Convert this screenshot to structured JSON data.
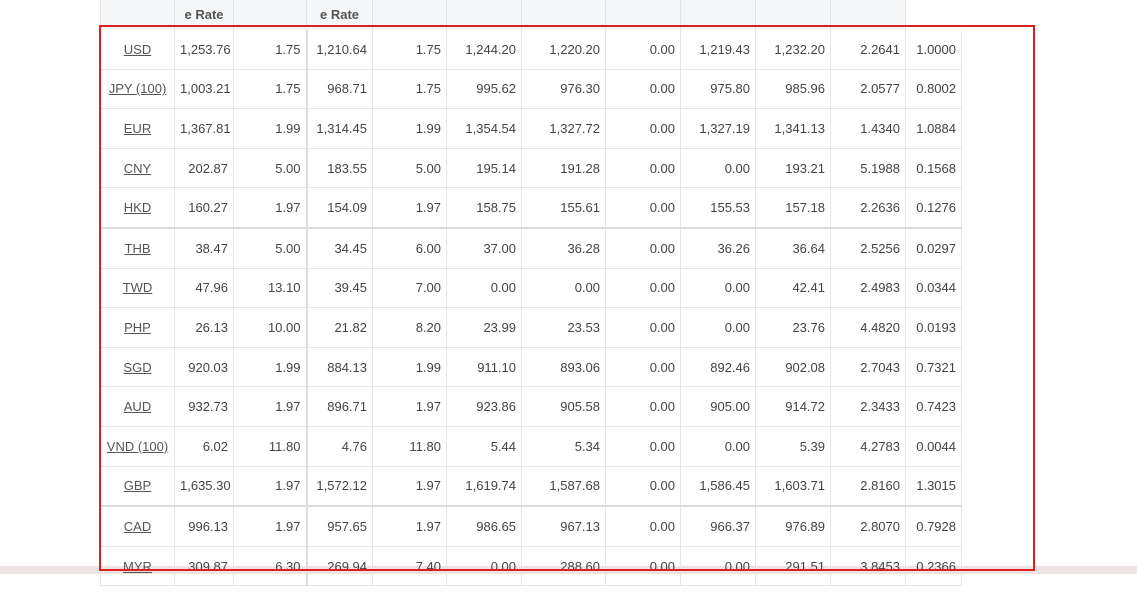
{
  "table": {
    "headers": [
      "",
      "e Rate",
      "",
      "e Rate",
      "",
      "",
      "",
      "",
      "",
      "",
      "",
      ""
    ],
    "rows": [
      {
        "currency": "USD",
        "cells": [
          "1,253.76",
          "1.75",
          "1,210.64",
          "1.75",
          "1,244.20",
          "1,220.20",
          "0.00",
          "1,219.43",
          "1,232.20",
          "2.2641",
          "1.0000"
        ]
      },
      {
        "currency": "JPY (100)",
        "cells": [
          "1,003.21",
          "1.75",
          "968.71",
          "1.75",
          "995.62",
          "976.30",
          "0.00",
          "975.80",
          "985.96",
          "2.0577",
          "0.8002"
        ]
      },
      {
        "currency": "EUR",
        "cells": [
          "1,367.81",
          "1.99",
          "1,314.45",
          "1.99",
          "1,354.54",
          "1,327.72",
          "0.00",
          "1,327.19",
          "1,341.13",
          "1.4340",
          "1.0884"
        ]
      },
      {
        "currency": "CNY",
        "cells": [
          "202.87",
          "5.00",
          "183.55",
          "5.00",
          "195.14",
          "191.28",
          "0.00",
          "0.00",
          "193.21",
          "5.1988",
          "0.1568"
        ]
      },
      {
        "currency": "HKD",
        "cells": [
          "160.27",
          "1.97",
          "154.09",
          "1.97",
          "158.75",
          "155.61",
          "0.00",
          "155.53",
          "157.18",
          "2.2636",
          "0.1276"
        ]
      },
      {
        "currency": "THB",
        "cells": [
          "38.47",
          "5.00",
          "34.45",
          "6.00",
          "37.00",
          "36.28",
          "0.00",
          "36.26",
          "36.64",
          "2.5256",
          "0.0297"
        ]
      },
      {
        "currency": "TWD",
        "cells": [
          "47.96",
          "13.10",
          "39.45",
          "7.00",
          "0.00",
          "0.00",
          "0.00",
          "0.00",
          "42.41",
          "2.4983",
          "0.0344"
        ]
      },
      {
        "currency": "PHP",
        "cells": [
          "26.13",
          "10.00",
          "21.82",
          "8.20",
          "23.99",
          "23.53",
          "0.00",
          "0.00",
          "23.76",
          "4.4820",
          "0.0193"
        ]
      },
      {
        "currency": "SGD",
        "cells": [
          "920.03",
          "1.99",
          "884.13",
          "1.99",
          "911.10",
          "893.06",
          "0.00",
          "892.46",
          "902.08",
          "2.7043",
          "0.7321"
        ]
      },
      {
        "currency": "AUD",
        "cells": [
          "932.73",
          "1.97",
          "896.71",
          "1.97",
          "923.86",
          "905.58",
          "0.00",
          "905.00",
          "914.72",
          "2.3433",
          "0.7423"
        ]
      },
      {
        "currency": "VND (100)",
        "cells": [
          "6.02",
          "11.80",
          "4.76",
          "11.80",
          "5.44",
          "5.34",
          "0.00",
          "0.00",
          "5.39",
          "4.2783",
          "0.0044"
        ]
      },
      {
        "currency": "GBP",
        "cells": [
          "1,635.30",
          "1.97",
          "1,572.12",
          "1.97",
          "1,619.74",
          "1,587.68",
          "0.00",
          "1,586.45",
          "1,603.71",
          "2.8160",
          "1.3015"
        ]
      },
      {
        "currency": "CAD",
        "cells": [
          "996.13",
          "1.97",
          "957.65",
          "1.97",
          "986.65",
          "967.13",
          "0.00",
          "966.37",
          "976.89",
          "2.8070",
          "0.7928"
        ]
      },
      {
        "currency": "MYR",
        "cells": [
          "309.87",
          "6.30",
          "269.94",
          "7.40",
          "0.00",
          "288.60",
          "0.00",
          "0.00",
          "291.51",
          "3.8453",
          "0.2366"
        ]
      }
    ]
  },
  "colors": {
    "highlight_border": "#dd1f1f",
    "header_bg": "#f4f6f8",
    "link_text": "#555555",
    "footer_band": "#ebe4e2"
  }
}
